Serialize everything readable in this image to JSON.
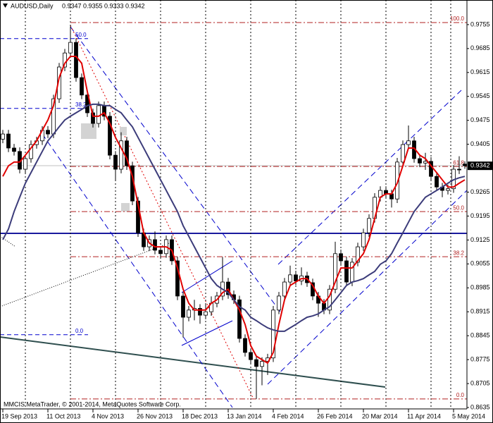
{
  "chart_data": {
    "type": "candlestick",
    "symbol": "AUDUSD,Daily",
    "copyright": "MMCIS MetaTrader, © 2001-2014, MetaQuotes Software Corp.",
    "categories": [
      "19 Sep 2013",
      null,
      null,
      null,
      null,
      null,
      null,
      null,
      "11 Oct 2013",
      null,
      null,
      null,
      null,
      null,
      null,
      null,
      "4 Nov 2013",
      null,
      null,
      null,
      null,
      null,
      null,
      null,
      "26 Nov 2013",
      null,
      null,
      null,
      null,
      null,
      null,
      null,
      "18 Dec 2013",
      null,
      null,
      null,
      null,
      null,
      null,
      null,
      "13 Jan 2014",
      null,
      null,
      null,
      null,
      null,
      null,
      null,
      "4 Feb 2014",
      null,
      null,
      null,
      null,
      null,
      null,
      null,
      "26 Feb 2014",
      null,
      null,
      null,
      null,
      null,
      null,
      null,
      "20 Mar 2014",
      null,
      null,
      null,
      null,
      null,
      null,
      null,
      "11 Apr 2014",
      null,
      null,
      null,
      null,
      null,
      null,
      null,
      "5 May 2014",
      null,
      null
    ],
    "open": [
      0.942,
      0.9435,
      0.9394,
      0.9384,
      0.9332,
      0.9363,
      0.9404,
      0.9415,
      0.9446,
      0.9435,
      0.9538,
      0.9631,
      0.9672,
      0.9703,
      0.96,
      0.9549,
      0.9497,
      0.9466,
      0.9518,
      0.9487,
      0.9373,
      0.9332,
      0.9415,
      0.9342,
      0.9239,
      0.9146,
      0.9105,
      0.9126,
      0.9095,
      0.9085,
      0.9126,
      0.9064,
      0.8961,
      0.8899,
      0.892,
      0.8925,
      0.8905,
      0.8915,
      0.894,
      0.8961,
      0.9002,
      0.8965,
      0.895,
      0.8837,
      0.8796,
      0.8775,
      0.8755,
      0.877,
      0.878,
      0.892,
      0.8961,
      0.9002,
      0.9023,
      0.9005,
      0.902,
      0.9,
      0.8961,
      0.894,
      0.892,
      0.8981,
      0.9085,
      0.9064,
      0.9002,
      0.906,
      0.9105,
      0.9146,
      0.9188,
      0.925,
      0.927,
      0.926,
      0.9245,
      0.9353,
      0.9404,
      0.9415,
      0.9363,
      0.935,
      0.9355,
      0.9311,
      0.928,
      0.927,
      0.9275,
      0.9332,
      0.9347
    ],
    "high": [
      0.9447,
      0.9447,
      0.9406,
      0.9396,
      0.9375,
      0.9416,
      0.9427,
      0.9458,
      0.9458,
      0.955,
      0.9643,
      0.9684,
      0.975,
      0.9715,
      0.9612,
      0.9561,
      0.9509,
      0.953,
      0.953,
      0.9499,
      0.9385,
      0.944,
      0.9427,
      0.9354,
      0.9251,
      0.9158,
      0.9138,
      0.915,
      0.9107,
      0.9138,
      0.9138,
      0.9076,
      0.8973,
      0.8932,
      0.895,
      0.8937,
      0.894,
      0.896,
      0.8973,
      0.9075,
      0.9014,
      0.8977,
      0.8962,
      0.8849,
      0.8808,
      0.8787,
      0.8782,
      0.8792,
      0.8932,
      0.8973,
      0.9014,
      0.905,
      0.9035,
      0.9045,
      0.9032,
      0.9012,
      0.8973,
      0.8952,
      0.8993,
      0.912,
      0.9097,
      0.9076,
      0.9072,
      0.9117,
      0.9158,
      0.92,
      0.9262,
      0.9282,
      0.9282,
      0.9272,
      0.9365,
      0.9416,
      0.946,
      0.9427,
      0.9375,
      0.938,
      0.9367,
      0.9323,
      0.9292,
      0.9287,
      0.9344,
      0.937,
      0.9355
    ],
    "low": [
      0.9408,
      0.9382,
      0.9372,
      0.932,
      0.932,
      0.9351,
      0.9392,
      0.9403,
      0.9423,
      0.9423,
      0.9526,
      0.9619,
      0.966,
      0.9588,
      0.9537,
      0.9485,
      0.9454,
      0.9454,
      0.9475,
      0.9361,
      0.93,
      0.932,
      0.933,
      0.9227,
      0.9134,
      0.9093,
      0.9093,
      0.9083,
      0.9073,
      0.9073,
      0.9052,
      0.8949,
      0.884,
      0.8887,
      0.889,
      0.888,
      0.8893,
      0.8903,
      0.8928,
      0.8949,
      0.8953,
      0.8938,
      0.8825,
      0.8784,
      0.8763,
      0.866,
      0.87,
      0.873,
      0.8768,
      0.8908,
      0.8949,
      0.899,
      0.8993,
      0.8993,
      0.8988,
      0.8949,
      0.89,
      0.8908,
      0.8908,
      0.8969,
      0.9052,
      0.899,
      0.899,
      0.9048,
      0.9093,
      0.9134,
      0.9176,
      0.9238,
      0.9248,
      0.922,
      0.9233,
      0.9341,
      0.9392,
      0.9351,
      0.9338,
      0.933,
      0.9299,
      0.9268,
      0.925,
      0.9258,
      0.9263,
      0.9318,
      0.9333
    ],
    "close": [
      0.9435,
      0.9394,
      0.9384,
      0.9332,
      0.9363,
      0.9404,
      0.9415,
      0.9446,
      0.9435,
      0.9538,
      0.9631,
      0.9672,
      0.9703,
      0.96,
      0.9549,
      0.9497,
      0.9466,
      0.9518,
      0.9487,
      0.9373,
      0.9332,
      0.9415,
      0.9342,
      0.9239,
      0.9146,
      0.9105,
      0.9126,
      0.9095,
      0.9085,
      0.9126,
      0.9064,
      0.8961,
      0.8899,
      0.892,
      0.8925,
      0.8905,
      0.8915,
      0.894,
      0.8961,
      0.9002,
      0.8965,
      0.895,
      0.8837,
      0.8796,
      0.8775,
      0.8755,
      0.877,
      0.878,
      0.892,
      0.8961,
      0.9002,
      0.9023,
      0.9005,
      0.902,
      0.9,
      0.8961,
      0.894,
      0.892,
      0.8981,
      0.9085,
      0.9064,
      0.9002,
      0.906,
      0.9105,
      0.9146,
      0.9188,
      0.925,
      0.927,
      0.926,
      0.9245,
      0.9353,
      0.9404,
      0.9415,
      0.9363,
      0.935,
      0.9355,
      0.9311,
      0.928,
      0.927,
      0.9275,
      0.9332,
      0.933,
      0.9342
    ],
    "bull_color": "#ffffff",
    "bear_color": "#000000",
    "moving_averages": [
      {
        "color": "#e00000",
        "values": [
          0.9311,
          0.9342,
          0.9353,
          0.9353,
          0.9373,
          0.9394,
          0.9415,
          0.9446,
          0.9476,
          0.9518,
          0.96,
          0.9642,
          0.9662,
          0.9662,
          0.9642,
          0.9559,
          0.9487,
          0.9487,
          0.9497,
          0.9466,
          0.9425,
          0.9394,
          0.9363,
          0.9311,
          0.9229,
          0.9146,
          0.9116,
          0.9105,
          0.9105,
          0.9105,
          0.9095,
          0.9043,
          0.8981,
          0.894,
          0.892,
          0.892,
          0.892,
          0.894,
          0.895,
          0.8971,
          0.8981,
          0.895,
          0.892,
          0.8878,
          0.8816,
          0.8785,
          0.8775,
          0.8765,
          0.8796,
          0.8878,
          0.895,
          0.8992,
          0.9002,
          0.9012,
          0.9012,
          0.8992,
          0.8961,
          0.894,
          0.8961,
          0.9002,
          0.9043,
          0.9043,
          0.9043,
          0.9064,
          0.9085,
          0.9126,
          0.9188,
          0.925,
          0.926,
          0.926,
          0.9291,
          0.9342,
          0.9394,
          0.9394,
          0.9373,
          0.9363,
          0.9342,
          0.9322,
          0.9301,
          0.928,
          0.928,
          0.9291,
          0.9301
        ]
      },
      {
        "color": "#3c3c7a",
        "values": [
          0.9126,
          0.9157,
          0.9208,
          0.925,
          0.9291,
          0.9322,
          0.9353,
          0.9384,
          0.9415,
          0.9435,
          0.9456,
          0.9476,
          0.9487,
          0.9497,
          0.9507,
          0.9518,
          0.9522,
          0.9522,
          0.9518,
          0.9518,
          0.9507,
          0.9497,
          0.9476,
          0.9456,
          0.9425,
          0.9394,
          0.9363,
          0.9332,
          0.9301,
          0.927,
          0.9239,
          0.9208,
          0.9167,
          0.9136,
          0.9105,
          0.9074,
          0.9043,
          0.9012,
          0.8992,
          0.8981,
          0.8971,
          0.895,
          0.893,
          0.892,
          0.8899,
          0.8889,
          0.8878,
          0.8868,
          0.8862,
          0.8858,
          0.8858,
          0.8868,
          0.8878,
          0.8889,
          0.8899,
          0.8903,
          0.8909,
          0.892,
          0.893,
          0.895,
          0.8971,
          0.8992,
          0.9002,
          0.9006,
          0.9012,
          0.9023,
          0.9033,
          0.9054,
          0.9064,
          0.9085,
          0.9116,
          0.9146,
          0.9177,
          0.9208,
          0.9229,
          0.925,
          0.926,
          0.927,
          0.928,
          0.9291,
          0.9301,
          0.9307,
          0.9311
        ]
      }
    ],
    "fibo": [
      {
        "color": "#0000cd",
        "levels": [
          {
            "value": 0.9714,
            "label": "50.0"
          },
          {
            "value": 0.951,
            "label": "38.2"
          },
          {
            "value": 0.8848,
            "label": "0.0"
          }
        ]
      },
      {
        "color": "#b22222",
        "levels": [
          {
            "value": 0.9761,
            "label": "100.0"
          },
          {
            "value": 0.934,
            "label": "61.8"
          },
          {
            "value": 0.9208,
            "label": "50.0"
          },
          {
            "value": 0.9076,
            "label": "38.2"
          },
          {
            "value": 0.866,
            "label": "0.0"
          }
        ]
      }
    ],
    "ylim": [
      0.8635,
      0.9827
    ],
    "yticks": [
      0.9755,
      0.9685,
      0.9615,
      0.9545,
      0.9475,
      0.9405,
      0.9265,
      0.9195,
      0.9125,
      0.9055,
      0.8985,
      0.8915,
      0.8845,
      0.8775,
      0.8705,
      0.8635
    ]
  }
}
